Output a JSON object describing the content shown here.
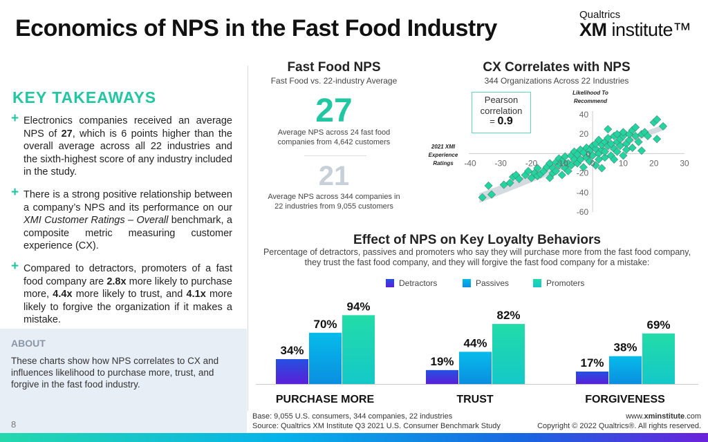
{
  "header": {
    "title": "Economics of NPS in the Fast Food Industry",
    "logo_top": "Qualtrics",
    "logo_xm": "XM",
    "logo_rest": " institute™"
  },
  "key_takeaways": {
    "heading": "KEY TAKEAWAYS",
    "items": [
      {
        "parts": [
          "Electronics companies received an average NPS of ",
          "27",
          ", which is 6 points higher than the overall average across all 22 industries and the sixth-highest score of any industry included in the study."
        ]
      },
      {
        "parts": [
          "There is a strong positive relationship between a company’s NPS and its performance on our ",
          "XMI Customer Ratings – Overall",
          " benchmark, a composite metric measuring customer experience (CX)."
        ]
      },
      {
        "parts": [
          "Compared to detractors, promoters of a fast food company are ",
          "2.8x",
          " more likely to purchase more, ",
          "4.4x",
          " more likely to trust, and ",
          "4.1x",
          " more likely to forgive the organization if it makes a mistake."
        ]
      }
    ]
  },
  "about": {
    "heading": "ABOUT",
    "text": "These charts show how NPS correlates to CX and influences likelihood to purchase more, trust, and forgive in the fast food industry."
  },
  "page_number": "8",
  "nps": {
    "title": "Fast Food NPS",
    "subtitle": "Fast Food vs. 22-industry Average",
    "value_fast_food": "27",
    "desc_fast_food": "Average NPS across 24 fast food companies from 4,642 customers",
    "value_avg": "21",
    "desc_avg": "Average NPS across 344 companies in 22 industries from 9,055 customers"
  },
  "colors": {
    "accent": "#22c6a0",
    "detractors": "#3a3ee0",
    "passives": "#08aee8",
    "promoters": "#20d8b0"
  },
  "chart_data": [
    {
      "type": "scatter",
      "title": "CX Correlates with NPS",
      "subtitle": "344 Organizations Across 22 Industries",
      "xlabel": "2021 XMI Experience Ratings",
      "ylabel": "Likelihood To Recommend",
      "xlim": [
        -40,
        30
      ],
      "ylim": [
        -60,
        40
      ],
      "xticks": [
        -40,
        -30,
        -20,
        -10,
        0,
        10,
        20,
        30
      ],
      "yticks": [
        40,
        20,
        0,
        -20,
        -40,
        -60
      ],
      "annotation": {
        "line1": "Pearson",
        "line2": "correlation",
        "line3": "= ",
        "value": "0.9"
      },
      "trend": [
        [
          -37,
          -45
        ],
        [
          24,
          28
        ]
      ],
      "points": [
        [
          -36,
          -45
        ],
        [
          -34,
          -33
        ],
        [
          -33,
          -42
        ],
        [
          -29,
          -32
        ],
        [
          -27,
          -30
        ],
        [
          -26,
          -24
        ],
        [
          -25,
          -22
        ],
        [
          -24,
          -26
        ],
        [
          -22,
          -22
        ],
        [
          -21,
          -18
        ],
        [
          -20,
          -25
        ],
        [
          -19,
          -20
        ],
        [
          -18,
          -23
        ],
        [
          -18,
          -15
        ],
        [
          -17,
          -21
        ],
        [
          -16,
          -18
        ],
        [
          -15,
          -14
        ],
        [
          -14,
          -25
        ],
        [
          -14,
          -10
        ],
        [
          -13,
          -20
        ],
        [
          -13,
          -15
        ],
        [
          -12,
          -9
        ],
        [
          -12,
          -18
        ],
        [
          -11,
          -5
        ],
        [
          -11,
          -12
        ],
        [
          -10,
          -22
        ],
        [
          -10,
          -8
        ],
        [
          -9,
          -15
        ],
        [
          -9,
          -3
        ],
        [
          -8,
          -10
        ],
        [
          -8,
          -18
        ],
        [
          -7,
          -2
        ],
        [
          -7,
          -12
        ],
        [
          -6,
          -6
        ],
        [
          -6,
          2
        ],
        [
          -5,
          -10
        ],
        [
          -5,
          -1
        ],
        [
          -4,
          4
        ],
        [
          -4,
          -6
        ],
        [
          -3,
          -14
        ],
        [
          -3,
          1
        ],
        [
          -2,
          6
        ],
        [
          -2,
          -4
        ],
        [
          -1,
          -8
        ],
        [
          -1,
          3
        ],
        [
          0,
          8
        ],
        [
          0,
          -2
        ],
        [
          1,
          -12
        ],
        [
          1,
          5
        ],
        [
          1,
          10
        ],
        [
          2,
          0
        ],
        [
          2,
          -6
        ],
        [
          2,
          14
        ],
        [
          3,
          4
        ],
        [
          3,
          -15
        ],
        [
          3,
          9
        ],
        [
          4,
          12
        ],
        [
          4,
          -4
        ],
        [
          4,
          2
        ],
        [
          5,
          25
        ],
        [
          5,
          8
        ],
        [
          5,
          16
        ],
        [
          6,
          -2
        ],
        [
          6,
          10
        ],
        [
          7,
          5
        ],
        [
          7,
          18
        ],
        [
          7,
          -6
        ],
        [
          8,
          12
        ],
        [
          8,
          2
        ],
        [
          8,
          20
        ],
        [
          9,
          8
        ],
        [
          9,
          15
        ],
        [
          10,
          -2
        ],
        [
          10,
          18
        ],
        [
          10,
          22
        ],
        [
          11,
          10
        ],
        [
          11,
          4
        ],
        [
          12,
          14
        ],
        [
          12,
          20
        ],
        [
          13,
          6
        ],
        [
          13,
          24
        ],
        [
          14,
          18
        ],
        [
          14,
          27
        ],
        [
          15,
          12
        ],
        [
          16,
          20
        ],
        [
          16,
          3
        ],
        [
          17,
          22
        ],
        [
          18,
          18
        ],
        [
          20,
          32
        ],
        [
          21,
          35
        ],
        [
          21,
          15
        ],
        [
          23,
          28
        ]
      ]
    },
    {
      "type": "bar",
      "title": "Effect of NPS on Key Loyalty Behaviors",
      "subtitle": "Percentage of detractors, passives and promoters who say they will purchase more from the fast food company, they trust the fast food company, and they will forgive the fast food company for a mistake:",
      "categories": [
        "PURCHASE MORE",
        "TRUST",
        "FORGIVENESS"
      ],
      "ylim": [
        0,
        100
      ],
      "legend": "top",
      "series": [
        {
          "name": "Detractors",
          "values": [
            34,
            19,
            17
          ],
          "labels": [
            "34%",
            "19%",
            "17%"
          ]
        },
        {
          "name": "Passives",
          "values": [
            70,
            44,
            38
          ],
          "labels": [
            "70%",
            "44%",
            "38%"
          ]
        },
        {
          "name": "Promoters",
          "values": [
            94,
            82,
            69
          ],
          "labels": [
            "94%",
            "82%",
            "69%"
          ]
        }
      ]
    }
  ],
  "footer": {
    "base": "Base: 9,055 U.S. consumers, 344 companies, 22 industries",
    "source": "Source: Qualtrics XM Institute Q3 2021 U.S. Consumer Benchmark Study",
    "url_pre": "www.",
    "url_bold": "xminstitute",
    ".com": ".com",
    "url_post": ".com",
    "copyright": "Copyright © 2022 Qualtrics®. All rights reserved."
  }
}
